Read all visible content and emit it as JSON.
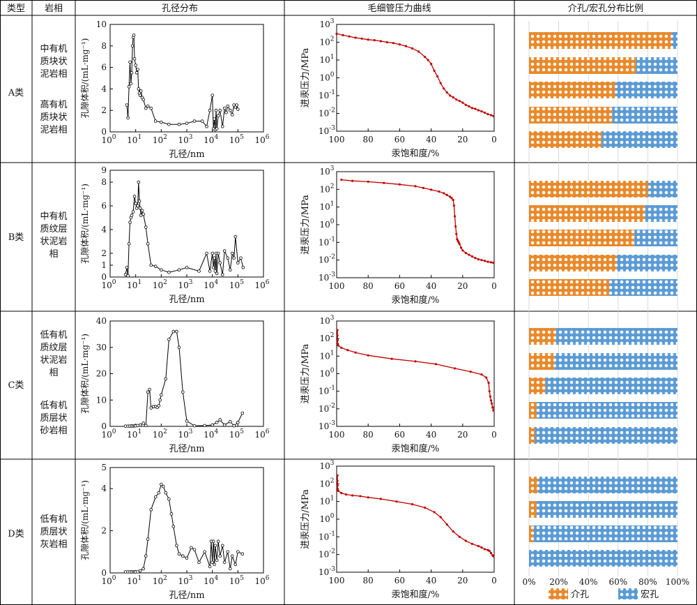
{
  "header": {
    "type_col": "类型",
    "lithofacies_col": "岩相",
    "pore_dist_col": "孔径分布",
    "capillary_col": "毛细管压力曲线",
    "ratio_col": "介孔/宏孔分布比例"
  },
  "rows": [
    {
      "type": "A类",
      "lithofacies": [
        [
          "中有机",
          "质块状",
          "泥岩相"
        ],
        [
          "高有机",
          "质块状",
          "泥岩相"
        ]
      ]
    },
    {
      "type": "B类",
      "lithofacies": [
        [
          "中有机",
          "质纹层",
          "状泥岩",
          "相"
        ]
      ]
    },
    {
      "type": "C类",
      "lithofacies": [
        [
          "低有机",
          "质纹层",
          "状泥岩",
          "相"
        ],
        [
          "低有机",
          "质层状",
          "砂岩相"
        ]
      ]
    },
    {
      "type": "D类",
      "lithofacies": [
        [
          "低有机",
          "质层状",
          "灰岩相"
        ]
      ]
    }
  ],
  "legend": {
    "meso": "介孔",
    "macro": "宏孔"
  },
  "colors": {
    "meso": "#E9892A",
    "macro": "#5B9BD5",
    "curve": "#C00000"
  },
  "chart_data": [
    {
      "type": "line",
      "panel": "pore_size_distribution",
      "row": "A类",
      "xlabel": "孔径/nm",
      "ylabel": "孔隙体积/(mL·mg⁻¹)",
      "xscale": "log",
      "xlim": [
        1,
        1000000
      ],
      "ylim": [
        0,
        10
      ],
      "yticks": [
        0,
        2,
        4,
        6,
        8,
        10
      ],
      "x": [
        4.5,
        5,
        5.5,
        6,
        6.5,
        7,
        7.5,
        8,
        8.5,
        9,
        10,
        11,
        12,
        13,
        14,
        15,
        16,
        18,
        20,
        25,
        30,
        40,
        60,
        100,
        200,
        500,
        1000,
        2000,
        4000,
        6000,
        8000,
        10000,
        11000,
        12000,
        13000,
        14000,
        15000,
        17000,
        20000,
        25000,
        30000,
        35000,
        40000,
        50000,
        60000,
        70000,
        80000,
        90000,
        100000
      ],
      "y": [
        2.5,
        1.3,
        4.2,
        6.5,
        4.5,
        5.5,
        8.0,
        8.8,
        9.0,
        6.8,
        6.2,
        5.5,
        5.8,
        4.0,
        3.6,
        3.4,
        3.8,
        3.2,
        3.0,
        2.2,
        2.4,
        2.2,
        1.0,
        0.9,
        0.7,
        0.7,
        0.8,
        1.0,
        1.0,
        0.5,
        2.0,
        3.4,
        0.3,
        1.2,
        0.2,
        2.0,
        0.3,
        1.5,
        2.0,
        0.5,
        2.2,
        1.8,
        2.4,
        2.0,
        1.6,
        2.5,
        2.3,
        2.5,
        2.1
      ]
    },
    {
      "type": "line",
      "panel": "pore_size_distribution",
      "row": "B类",
      "xlabel": "孔径/nm",
      "ylabel": "孔隙体积/(mL·mg⁻¹)",
      "xscale": "log",
      "xlim": [
        1,
        1000000
      ],
      "ylim": [
        0,
        9
      ],
      "yticks": [
        0,
        1,
        2,
        4,
        6,
        8,
        9
      ],
      "x": [
        4,
        4.5,
        5,
        5.5,
        6,
        6.5,
        7,
        8,
        9,
        10,
        11,
        12,
        13,
        14,
        15,
        16,
        18,
        20,
        25,
        30,
        40,
        60,
        100,
        200,
        500,
        1000,
        3000,
        6000,
        8000,
        10000,
        11000,
        12000,
        13000,
        14000,
        15000,
        17000,
        20000,
        25000,
        30000,
        40000,
        50000,
        60000,
        70000,
        80000,
        100000,
        130000,
        160000
      ],
      "y": [
        0.2,
        0.8,
        0.1,
        2.8,
        4.6,
        5.0,
        5.2,
        5.5,
        6.8,
        6.2,
        5.8,
        6.0,
        8.0,
        6.4,
        5.8,
        5.2,
        5.6,
        5.3,
        4.2,
        2.8,
        1.0,
        0.9,
        0.6,
        0.4,
        0.6,
        0.8,
        0.5,
        2.0,
        0.5,
        2.0,
        0.8,
        1.6,
        0.5,
        2.0,
        0.3,
        2.0,
        1.2,
        0.2,
        2.2,
        1.6,
        0.6,
        2.0,
        1.6,
        3.4,
        1.2,
        1.6,
        0.8
      ]
    },
    {
      "type": "line",
      "panel": "pore_size_distribution",
      "row": "C类",
      "xlabel": "孔径/nm",
      "ylabel": "孔隙体积/(mL·mg⁻¹)",
      "xscale": "log",
      "xlim": [
        1,
        1000000
      ],
      "ylim": [
        0,
        40
      ],
      "yticks": [
        0,
        10,
        20,
        30,
        40
      ],
      "x": [
        4,
        5,
        6,
        7,
        8,
        9,
        10,
        12,
        15,
        20,
        25,
        30,
        35,
        40,
        50,
        60,
        70,
        80,
        90,
        100,
        150,
        200,
        300,
        400,
        500,
        700,
        1000,
        2000,
        5000,
        10000,
        15000,
        20000,
        30000,
        50000,
        70000,
        100000,
        150000
      ],
      "y": [
        0.1,
        0.1,
        0.1,
        0.2,
        0.1,
        0.2,
        0.2,
        0.3,
        0.5,
        1.2,
        0.3,
        13.0,
        14.0,
        7.0,
        7.5,
        7.5,
        7.2,
        7.8,
        10.0,
        12.0,
        18.0,
        33.0,
        36.0,
        36.0,
        30.0,
        13.0,
        2.0,
        0.2,
        0.3,
        0.5,
        1.5,
        2.5,
        0.5,
        1.8,
        0.2,
        1.5,
        5.0
      ]
    },
    {
      "type": "line",
      "panel": "pore_size_distribution",
      "row": "D类",
      "xlabel": "孔径/nm",
      "ylabel": "孔隙体积/(mL·mg⁻¹)",
      "xscale": "log",
      "xlim": [
        1,
        1000000
      ],
      "ylim": [
        0,
        5
      ],
      "yticks": [
        0,
        2,
        4,
        5
      ],
      "x": [
        4,
        5,
        6,
        7,
        8,
        9,
        10,
        12,
        15,
        20,
        25,
        30,
        40,
        60,
        80,
        100,
        120,
        150,
        200,
        250,
        300,
        400,
        500,
        700,
        1000,
        1500,
        2000,
        3000,
        5000,
        8000,
        9000,
        10000,
        11000,
        12000,
        13000,
        15000,
        17000,
        20000,
        25000,
        30000,
        40000,
        50000,
        60000,
        80000,
        100000,
        150000
      ],
      "y": [
        0.05,
        0.05,
        0.05,
        0.05,
        0.05,
        0.05,
        0.05,
        0.05,
        0.1,
        0.2,
        0.8,
        1.6,
        3.0,
        3.6,
        3.8,
        4.2,
        4.1,
        3.8,
        3.5,
        2.8,
        2.2,
        1.3,
        0.9,
        0.8,
        0.7,
        1.2,
        1.1,
        0.5,
        1.0,
        0.3,
        1.5,
        0.5,
        1.5,
        0.4,
        1.3,
        0.6,
        1.5,
        0.8,
        1.3,
        0.5,
        1.0,
        0.2,
        0.8,
        0.4,
        1.0,
        0.9
      ]
    },
    {
      "type": "line",
      "panel": "capillary_pressure",
      "row": "A类",
      "xlabel": "汞饱和度/%",
      "ylabel": "进汞压力/MPa",
      "yscale": "log",
      "xlim": [
        100,
        0
      ],
      "ylim": [
        0.001,
        1000
      ],
      "x": [
        100,
        96,
        92,
        88,
        84,
        80,
        76,
        72,
        68,
        64,
        60,
        56,
        52,
        48,
        44,
        42,
        40,
        38,
        36,
        34,
        32,
        30,
        28,
        26,
        24,
        22,
        20,
        18,
        16,
        14,
        12,
        10,
        8,
        6,
        4,
        2,
        0.5
      ],
      "y": [
        300,
        250,
        210,
        180,
        160,
        140,
        130,
        115,
        100,
        90,
        75,
        60,
        45,
        30,
        15,
        10,
        6,
        2.5,
        1.2,
        0.5,
        0.25,
        0.15,
        0.1,
        0.08,
        0.06,
        0.05,
        0.04,
        0.03,
        0.025,
        0.02,
        0.018,
        0.015,
        0.013,
        0.011,
        0.009,
        0.008,
        0.007
      ]
    },
    {
      "type": "line",
      "panel": "capillary_pressure",
      "row": "B类",
      "xlabel": "汞饱和度/%",
      "ylabel": "进汞压力/MPa",
      "yscale": "log",
      "xlim": [
        100,
        0
      ],
      "ylim": [
        0.001,
        1000
      ],
      "x": [
        97,
        90,
        80,
        70,
        60,
        50,
        45,
        40,
        35,
        32,
        30,
        28,
        27,
        26,
        25.5,
        25,
        24.5,
        24,
        23.5,
        23,
        22.5,
        22,
        21,
        20,
        18,
        16,
        14,
        12,
        10,
        8,
        6,
        4,
        2,
        0.5
      ],
      "y": [
        350,
        300,
        270,
        230,
        190,
        150,
        120,
        95,
        75,
        60,
        48,
        38,
        32,
        25,
        12,
        3,
        0.8,
        0.3,
        0.15,
        0.12,
        0.1,
        0.08,
        0.05,
        0.035,
        0.025,
        0.02,
        0.016,
        0.013,
        0.011,
        0.01,
        0.009,
        0.008,
        0.0075,
        0.007
      ]
    },
    {
      "type": "line",
      "panel": "capillary_pressure",
      "row": "C类",
      "xlabel": "汞饱和度/%",
      "ylabel": "进汞压力/MPa",
      "yscale": "log",
      "xlim": [
        100,
        0
      ],
      "ylim": [
        0.001,
        1000
      ],
      "x": [
        99.5,
        99.5,
        99.4,
        99.3,
        99,
        97,
        93,
        88,
        80,
        65,
        50,
        37,
        25,
        15,
        8,
        5,
        3.5,
        3,
        2.5,
        2,
        1.5,
        1,
        0.5
      ],
      "y": [
        300,
        150,
        80,
        50,
        40,
        30,
        22,
        16,
        11,
        7,
        5,
        3.5,
        2,
        1.3,
        0.9,
        0.6,
        0.3,
        0.1,
        0.05,
        0.03,
        0.02,
        0.012,
        0.008
      ]
    },
    {
      "type": "line",
      "panel": "capillary_pressure",
      "row": "D类",
      "xlabel": "汞饱和度/%",
      "ylabel": "进汞压力/MPa",
      "yscale": "log",
      "xlim": [
        100,
        0
      ],
      "ylim": [
        0.001,
        1000
      ],
      "x": [
        99.5,
        99.5,
        99.4,
        99.3,
        99,
        97,
        94,
        90,
        85,
        80,
        72,
        62,
        52,
        44,
        38,
        34,
        30,
        26,
        22,
        18,
        14,
        10,
        8,
        6,
        4,
        3,
        2,
        1,
        0.5
      ],
      "y": [
        300,
        150,
        80,
        50,
        40,
        30,
        25,
        22,
        20,
        17,
        14,
        10,
        7,
        4.5,
        2.5,
        1.3,
        0.5,
        0.2,
        0.1,
        0.06,
        0.04,
        0.03,
        0.025,
        0.02,
        0.018,
        0.016,
        0.012,
        0.009,
        0.008
      ]
    },
    {
      "type": "bar",
      "panel": "meso_macro_ratio",
      "orientation": "horizontal",
      "stacked": true,
      "xticks": [
        "0%",
        "20%",
        "40%",
        "60%",
        "80%",
        "100%"
      ],
      "legend_position": "bottom",
      "series": [
        {
          "name": "介孔",
          "values": [
            96,
            72,
            58,
            56,
            49,
            80,
            78,
            71,
            59,
            54,
            18,
            17,
            11,
            5,
            4,
            6,
            5,
            3,
            0
          ]
        },
        {
          "name": "宏孔",
          "values": [
            4,
            28,
            42,
            44,
            51,
            20,
            22,
            29,
            41,
            46,
            82,
            83,
            89,
            95,
            96,
            94,
            95,
            97,
            100
          ]
        }
      ],
      "groups": [
        "A类",
        "A类",
        "A类",
        "A类",
        "A类",
        "B类",
        "B类",
        "B类",
        "B类",
        "B类",
        "C类",
        "C类",
        "C类",
        "C类",
        "C类",
        "D类",
        "D类",
        "D类",
        "D类"
      ]
    }
  ]
}
